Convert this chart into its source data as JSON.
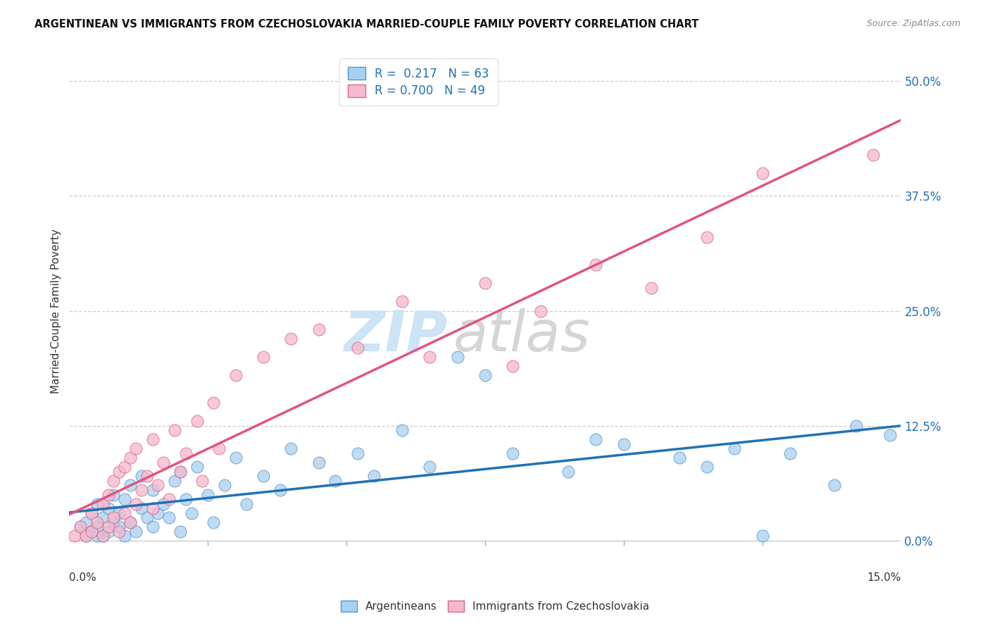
{
  "title": "ARGENTINEAN VS IMMIGRANTS FROM CZECHOSLOVAKIA MARRIED-COUPLE FAMILY POVERTY CORRELATION CHART",
  "source": "Source: ZipAtlas.com",
  "ylabel": "Married-Couple Family Poverty",
  "ytick_vals": [
    0.0,
    12.5,
    25.0,
    37.5,
    50.0
  ],
  "xlim": [
    0.0,
    15.0
  ],
  "ylim": [
    -2.0,
    52.0
  ],
  "blue_color": "#a8d0f0",
  "pink_color": "#f5b8cc",
  "blue_edge_color": "#5599cc",
  "pink_edge_color": "#dd6688",
  "blue_line_color": "#2171b5",
  "pink_line_color": "#e05580",
  "watermark_zip_color": "#cce4f5",
  "watermark_atlas_color": "#d5d5d5",
  "blue_scatter_x": [
    0.2,
    0.3,
    0.3,
    0.4,
    0.4,
    0.5,
    0.5,
    0.5,
    0.6,
    0.6,
    0.7,
    0.7,
    0.8,
    0.8,
    0.9,
    0.9,
    1.0,
    1.0,
    1.1,
    1.1,
    1.2,
    1.3,
    1.3,
    1.4,
    1.5,
    1.5,
    1.6,
    1.7,
    1.8,
    1.9,
    2.0,
    2.0,
    2.1,
    2.2,
    2.3,
    2.5,
    2.6,
    2.8,
    3.0,
    3.2,
    3.5,
    3.8,
    4.0,
    4.5,
    4.8,
    5.2,
    5.5,
    6.0,
    6.5,
    7.0,
    7.5,
    8.0,
    9.0,
    9.5,
    10.0,
    11.0,
    11.5,
    12.0,
    12.5,
    13.0,
    13.8,
    14.2,
    14.8
  ],
  "blue_scatter_y": [
    1.5,
    0.5,
    2.0,
    1.0,
    3.0,
    0.5,
    1.5,
    4.0,
    2.5,
    0.5,
    1.0,
    3.5,
    2.0,
    5.0,
    1.5,
    3.0,
    0.5,
    4.5,
    2.0,
    6.0,
    1.0,
    3.5,
    7.0,
    2.5,
    1.5,
    5.5,
    3.0,
    4.0,
    2.5,
    6.5,
    1.0,
    7.5,
    4.5,
    3.0,
    8.0,
    5.0,
    2.0,
    6.0,
    9.0,
    4.0,
    7.0,
    5.5,
    10.0,
    8.5,
    6.5,
    9.5,
    7.0,
    12.0,
    8.0,
    20.0,
    18.0,
    9.5,
    7.5,
    11.0,
    10.5,
    9.0,
    8.0,
    10.0,
    0.5,
    9.5,
    6.0,
    12.5,
    11.5
  ],
  "pink_scatter_x": [
    0.1,
    0.2,
    0.3,
    0.4,
    0.4,
    0.5,
    0.6,
    0.6,
    0.7,
    0.7,
    0.8,
    0.8,
    0.9,
    0.9,
    1.0,
    1.0,
    1.1,
    1.1,
    1.2,
    1.2,
    1.3,
    1.4,
    1.5,
    1.5,
    1.6,
    1.7,
    1.8,
    1.9,
    2.0,
    2.1,
    2.3,
    2.4,
    2.6,
    2.7,
    3.0,
    3.5,
    4.0,
    4.5,
    5.2,
    6.0,
    6.5,
    7.5,
    8.0,
    8.5,
    9.5,
    10.5,
    11.5,
    12.5,
    14.5
  ],
  "pink_scatter_y": [
    0.5,
    1.5,
    0.5,
    1.0,
    3.0,
    2.0,
    0.5,
    4.0,
    1.5,
    5.0,
    2.5,
    6.5,
    1.0,
    7.5,
    3.0,
    8.0,
    2.0,
    9.0,
    4.0,
    10.0,
    5.5,
    7.0,
    3.5,
    11.0,
    6.0,
    8.5,
    4.5,
    12.0,
    7.5,
    9.5,
    13.0,
    6.5,
    15.0,
    10.0,
    18.0,
    20.0,
    22.0,
    23.0,
    21.0,
    26.0,
    20.0,
    28.0,
    19.0,
    25.0,
    30.0,
    27.5,
    33.0,
    40.0,
    42.0
  ]
}
